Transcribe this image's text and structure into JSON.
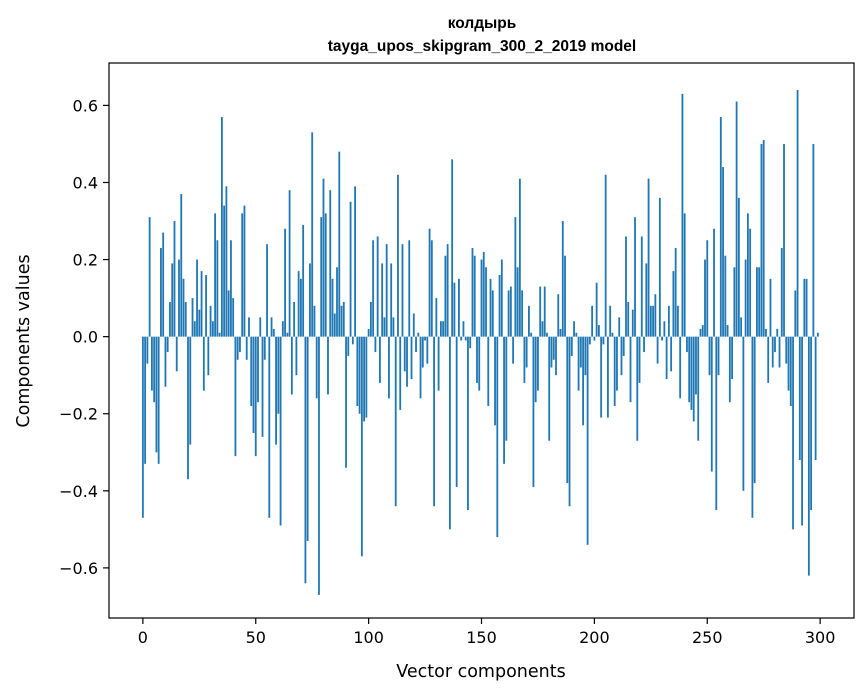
{
  "chart_data": {
    "type": "bar",
    "title": "колдырь",
    "subtitle": "tayga_upos_skipgram_300_2_2019 model",
    "xlabel": "Vector components",
    "ylabel": "Components values",
    "xlim": [
      -15,
      315
    ],
    "ylim": [
      -0.73,
      0.71
    ],
    "xticks": [
      0,
      50,
      100,
      150,
      200,
      250,
      300
    ],
    "xtick_labels": [
      "0",
      "50",
      "100",
      "150",
      "200",
      "250",
      "300"
    ],
    "yticks": [
      -0.6,
      -0.4,
      -0.2,
      0.0,
      0.2,
      0.4,
      0.6
    ],
    "ytick_labels": [
      "−0.6",
      "−0.4",
      "−0.2",
      "0.0",
      "0.2",
      "0.4",
      "0.6"
    ],
    "bar_color": "#1f77b4",
    "grid": false,
    "series": [
      {
        "name": "components",
        "values": [
          -0.47,
          -0.33,
          -0.07,
          0.31,
          -0.14,
          -0.17,
          -0.3,
          -0.33,
          0.23,
          0.27,
          -0.13,
          -0.04,
          0.09,
          0.19,
          0.3,
          -0.09,
          0.2,
          0.37,
          0.15,
          0.09,
          -0.37,
          -0.28,
          0.1,
          0.04,
          0.2,
          0.07,
          0.17,
          -0.14,
          0.16,
          -0.1,
          0.08,
          0.04,
          0.32,
          0.25,
          0.01,
          0.57,
          0.34,
          0.39,
          0.12,
          0.25,
          0.1,
          -0.31,
          -0.06,
          -0.04,
          0.32,
          0.34,
          -0.06,
          0.05,
          -0.18,
          -0.25,
          -0.31,
          -0.17,
          0.05,
          -0.26,
          -0.06,
          0.24,
          -0.47,
          0.05,
          0.02,
          -0.28,
          -0.2,
          -0.49,
          0.04,
          0.28,
          0.01,
          0.38,
          -0.15,
          0.09,
          -0.1,
          0.17,
          0.15,
          0.29,
          -0.64,
          -0.53,
          0.19,
          0.53,
          0.08,
          -0.16,
          -0.67,
          0.31,
          0.41,
          0.32,
          -0.15,
          0.38,
          0.15,
          0.06,
          0.18,
          0.48,
          0.08,
          0.09,
          -0.34,
          -0.05,
          0.35,
          -0.02,
          0.39,
          -0.18,
          -0.2,
          -0.57,
          -0.22,
          -0.21,
          0.02,
          0.09,
          0.25,
          -0.04,
          0.26,
          -0.12,
          0.19,
          0.05,
          0.24,
          -0.16,
          0.19,
          0.05,
          -0.44,
          0.42,
          -0.19,
          0.24,
          -0.09,
          -0.13,
          0.25,
          -0.11,
          0.06,
          -0.04,
          0.01,
          -0.16,
          -0.08,
          -0.01,
          -0.07,
          0.28,
          0.25,
          -0.44,
          0.1,
          -0.14,
          0.04,
          0.04,
          0.21,
          0.24,
          -0.5,
          0.46,
          0.14,
          -0.39,
          0.15,
          -0.01,
          0.04,
          -0.01,
          -0.45,
          -0.03,
          0.23,
          0.21,
          -0.12,
          -0.14,
          0.2,
          0.22,
          0.18,
          -0.18,
          0.15,
          0.12,
          -0.23,
          -0.52,
          0.16,
          0.2,
          -0.33,
          -0.27,
          0.12,
          0.13,
          -0.07,
          0.31,
          0.18,
          0.41,
          0.12,
          -0.12,
          -0.08,
          0.08,
          0.01,
          -0.39,
          -0.17,
          -0.14,
          0.13,
          0.04,
          0.13,
          0.01,
          -0.27,
          -0.08,
          -0.06,
          -0.1,
          0.11,
          0.02,
          0.3,
          0.21,
          -0.38,
          -0.44,
          -0.05,
          0.04,
          0.01,
          -0.14,
          -0.08,
          -0.23,
          -0.1,
          -0.54,
          -0.02,
          0.08,
          -0.01,
          0.14,
          0.03,
          -0.21,
          -0.02,
          0.42,
          -0.21,
          0.08,
          0.01,
          -0.18,
          -0.14,
          0.05,
          -0.1,
          -0.05,
          0.26,
          0.09,
          -0.17,
          0.07,
          0.31,
          -0.27,
          -0.12,
          0.26,
          -0.04,
          0.19,
          0.41,
          0.08,
          0.08,
          0.11,
          -0.07,
          0.36,
          -0.01,
          0.04,
          -0.11,
          0.08,
          -0.09,
          0.17,
          0.23,
          0.08,
          -0.16,
          0.63,
          0.32,
          -0.04,
          -0.17,
          -0.19,
          -0.22,
          -0.15,
          -0.27,
          0.02,
          0.03,
          0.2,
          0.25,
          -0.1,
          -0.35,
          0.28,
          -0.45,
          -0.1,
          0.57,
          0.44,
          0.21,
          0.03,
          -0.17,
          -0.11,
          0.18,
          0.61,
          0.36,
          0.05,
          -0.4,
          0.2,
          0.32,
          0.28,
          -0.47,
          -0.38,
          0.18,
          0.18,
          0.5,
          0.51,
          0.02,
          -0.12,
          0.15,
          -0.08,
          -0.04,
          0.02,
          -0.08,
          0.23,
          0.5,
          -0.07,
          -0.14,
          -0.18,
          -0.5,
          0.12,
          0.64,
          -0.32,
          -0.49,
          0.15,
          0.15,
          -0.62,
          -0.45,
          0.5,
          -0.32,
          0.01
        ]
      }
    ]
  }
}
